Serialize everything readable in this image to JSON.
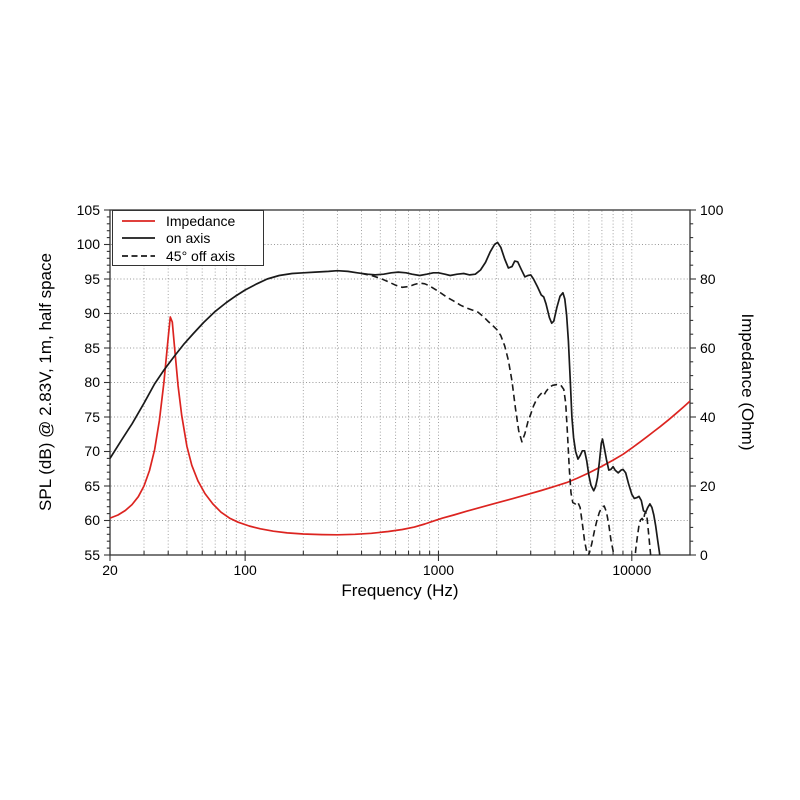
{
  "chart_data": {
    "type": "line",
    "title": "",
    "xlabel": "Frequency (Hz)",
    "ylabel_left": "SPL (dB) @ 2.83V, 1m, half space",
    "ylabel_right": "Impedance (Ohm)",
    "x_axis": {
      "scale": "log",
      "min": 20,
      "max": 20000,
      "major_ticks": [
        20,
        100,
        1000,
        10000
      ],
      "major_tick_labels": [
        "20",
        "100",
        "1000",
        "10000"
      ],
      "minor_ticks": [
        30,
        40,
        50,
        60,
        70,
        80,
        90,
        200,
        300,
        400,
        500,
        600,
        700,
        800,
        900,
        2000,
        3000,
        4000,
        5000,
        6000,
        7000,
        8000,
        9000
      ]
    },
    "y_left": {
      "min": 55,
      "max": 105,
      "major_ticks": [
        55,
        60,
        65,
        70,
        75,
        80,
        85,
        90,
        95,
        100,
        105
      ],
      "minor_step": 1
    },
    "y_right": {
      "min": 0,
      "max": 100,
      "major_ticks": [
        0,
        20,
        40,
        60,
        80,
        100
      ],
      "minor_step": 4
    },
    "grid": {
      "on": true,
      "color": "#999999",
      "style": "dotted"
    },
    "legend_position": "top-left",
    "series": [
      {
        "name": "Impedance",
        "axis": "right",
        "color": "#dc2420",
        "style": "solid",
        "points": [
          [
            20,
            10.7
          ],
          [
            22,
            11.6
          ],
          [
            24,
            12.9
          ],
          [
            26,
            14.6
          ],
          [
            28,
            16.9
          ],
          [
            30,
            20
          ],
          [
            32,
            24.5
          ],
          [
            34,
            30.5
          ],
          [
            36,
            39
          ],
          [
            38,
            50
          ],
          [
            40,
            63
          ],
          [
            41,
            69
          ],
          [
            42,
            67.5
          ],
          [
            43,
            61
          ],
          [
            45,
            49
          ],
          [
            47,
            40.5
          ],
          [
            50,
            31.5
          ],
          [
            53,
            26
          ],
          [
            57,
            21.5
          ],
          [
            62,
            17.8
          ],
          [
            68,
            14.8
          ],
          [
            75,
            12.4
          ],
          [
            83,
            10.7
          ],
          [
            92,
            9.5
          ],
          [
            105,
            8.4
          ],
          [
            120,
            7.6
          ],
          [
            140,
            6.9
          ],
          [
            165,
            6.4
          ],
          [
            200,
            6.1
          ],
          [
            250,
            5.9
          ],
          [
            300,
            5.85
          ],
          [
            370,
            6
          ],
          [
            450,
            6.3
          ],
          [
            550,
            6.8
          ],
          [
            650,
            7.4
          ],
          [
            750,
            8.1
          ],
          [
            850,
            9
          ],
          [
            950,
            9.9
          ],
          [
            1050,
            10.7
          ],
          [
            1200,
            11.6
          ],
          [
            1400,
            12.7
          ],
          [
            1700,
            14
          ],
          [
            2000,
            15.1
          ],
          [
            2400,
            16.3
          ],
          [
            2900,
            17.6
          ],
          [
            3400,
            18.7
          ],
          [
            4000,
            19.9
          ],
          [
            4600,
            21
          ],
          [
            5200,
            22.2
          ],
          [
            6000,
            23.8
          ],
          [
            7000,
            25.7
          ],
          [
            8000,
            27.5
          ],
          [
            9000,
            29.2
          ],
          [
            10000,
            31
          ],
          [
            11000,
            32.7
          ],
          [
            12000,
            34.3
          ],
          [
            13000,
            35.8
          ],
          [
            14000,
            37.2
          ],
          [
            15500,
            39.2
          ],
          [
            17000,
            41.1
          ],
          [
            18500,
            42.9
          ],
          [
            20000,
            44.6
          ]
        ]
      },
      {
        "name": "on axis",
        "axis": "left",
        "color": "#1a1a1a",
        "style": "solid",
        "points": [
          [
            20,
            69
          ],
          [
            23,
            71.7
          ],
          [
            26,
            74
          ],
          [
            30,
            77
          ],
          [
            34,
            79.8
          ],
          [
            38,
            81.8
          ],
          [
            43,
            83.8
          ],
          [
            48,
            85.5
          ],
          [
            54,
            87.1
          ],
          [
            61,
            88.7
          ],
          [
            70,
            90.3
          ],
          [
            80,
            91.6
          ],
          [
            90,
            92.6
          ],
          [
            100,
            93.4
          ],
          [
            115,
            94.3
          ],
          [
            130,
            95
          ],
          [
            150,
            95.5
          ],
          [
            175,
            95.8
          ],
          [
            200,
            95.9
          ],
          [
            230,
            96
          ],
          [
            270,
            96.1
          ],
          [
            300,
            96.2
          ],
          [
            340,
            96.1
          ],
          [
            380,
            95.9
          ],
          [
            430,
            95.7
          ],
          [
            470,
            95.6
          ],
          [
            520,
            95.7
          ],
          [
            570,
            95.9
          ],
          [
            620,
            96
          ],
          [
            680,
            95.9
          ],
          [
            730,
            95.7
          ],
          [
            800,
            95.5
          ],
          [
            870,
            95.7
          ],
          [
            940,
            95.9
          ],
          [
            1000,
            95.9
          ],
          [
            1080,
            95.7
          ],
          [
            1150,
            95.5
          ],
          [
            1250,
            95.7
          ],
          [
            1350,
            95.8
          ],
          [
            1450,
            95.6
          ],
          [
            1550,
            95.7
          ],
          [
            1650,
            96.3
          ],
          [
            1750,
            97.4
          ],
          [
            1850,
            98.9
          ],
          [
            1950,
            100
          ],
          [
            2020,
            100.3
          ],
          [
            2100,
            99.6
          ],
          [
            2200,
            97.9
          ],
          [
            2300,
            96.6
          ],
          [
            2400,
            96.8
          ],
          [
            2480,
            97.6
          ],
          [
            2570,
            97.5
          ],
          [
            2680,
            96.4
          ],
          [
            2800,
            95.3
          ],
          [
            2900,
            95.5
          ],
          [
            3000,
            95.6
          ],
          [
            3100,
            95
          ],
          [
            3250,
            93.9
          ],
          [
            3400,
            92.7
          ],
          [
            3500,
            92.4
          ],
          [
            3600,
            91.4
          ],
          [
            3750,
            89.4
          ],
          [
            3850,
            88.6
          ],
          [
            3950,
            88.9
          ],
          [
            4100,
            90.9
          ],
          [
            4250,
            92.5
          ],
          [
            4400,
            93
          ],
          [
            4500,
            92.1
          ],
          [
            4600,
            89.8
          ],
          [
            4700,
            86
          ],
          [
            4800,
            80.5
          ],
          [
            4900,
            75
          ],
          [
            5000,
            72
          ],
          [
            5120,
            70
          ],
          [
            5270,
            68.9
          ],
          [
            5400,
            69.4
          ],
          [
            5550,
            70.1
          ],
          [
            5700,
            70.1
          ],
          [
            5850,
            68.6
          ],
          [
            6000,
            66.5
          ],
          [
            6150,
            65.1
          ],
          [
            6350,
            64.3
          ],
          [
            6500,
            64.9
          ],
          [
            6650,
            66.2
          ],
          [
            6800,
            68.5
          ],
          [
            6950,
            71.2
          ],
          [
            7050,
            71.8
          ],
          [
            7200,
            70.6
          ],
          [
            7400,
            68.8
          ],
          [
            7600,
            67.3
          ],
          [
            7800,
            67.4
          ],
          [
            8000,
            67.8
          ],
          [
            8200,
            67.3
          ],
          [
            8500,
            66.9
          ],
          [
            8800,
            67.3
          ],
          [
            9000,
            67.4
          ],
          [
            9300,
            66.9
          ],
          [
            9600,
            65.4
          ],
          [
            10000,
            63.8
          ],
          [
            10300,
            63.2
          ],
          [
            10600,
            63.3
          ],
          [
            10900,
            63.5
          ],
          [
            11200,
            62.9
          ],
          [
            11500,
            61.4
          ],
          [
            11800,
            61.2
          ],
          [
            12100,
            61.9
          ],
          [
            12400,
            62.4
          ],
          [
            12700,
            61.9
          ],
          [
            13000,
            60.8
          ],
          [
            13300,
            59.2
          ],
          [
            13600,
            57.2
          ],
          [
            13900,
            55.3
          ],
          [
            14150,
            53.5
          ]
        ]
      },
      {
        "name": "45° off axis",
        "axis": "left",
        "color": "#1a1a1a",
        "style": "dashed",
        "points": [
          [
            400,
            95.8
          ],
          [
            450,
            95.5
          ],
          [
            500,
            95.1
          ],
          [
            550,
            94.6
          ],
          [
            600,
            94.1
          ],
          [
            650,
            93.8
          ],
          [
            700,
            93.9
          ],
          [
            750,
            94.2
          ],
          [
            800,
            94.4
          ],
          [
            850,
            94.3
          ],
          [
            900,
            94
          ],
          [
            1000,
            93.2
          ],
          [
            1100,
            92.4
          ],
          [
            1200,
            91.8
          ],
          [
            1300,
            91.2
          ],
          [
            1400,
            90.8
          ],
          [
            1500,
            90.5
          ],
          [
            1600,
            90.2
          ],
          [
            1700,
            89.6
          ],
          [
            1800,
            88.9
          ],
          [
            1900,
            88.3
          ],
          [
            2000,
            87.7
          ],
          [
            2100,
            86.8
          ],
          [
            2200,
            85.3
          ],
          [
            2300,
            83.2
          ],
          [
            2400,
            80.2
          ],
          [
            2500,
            76.3
          ],
          [
            2600,
            73
          ],
          [
            2700,
            71.4
          ],
          [
            2800,
            72.6
          ],
          [
            2900,
            74.3
          ],
          [
            3000,
            75.4
          ],
          [
            3100,
            76.6
          ],
          [
            3200,
            77.4
          ],
          [
            3300,
            78
          ],
          [
            3400,
            78.4
          ],
          [
            3500,
            78.1
          ],
          [
            3600,
            78.7
          ],
          [
            3750,
            79.3
          ],
          [
            3900,
            79.6
          ],
          [
            4100,
            79.7
          ],
          [
            4300,
            79.6
          ],
          [
            4450,
            79
          ],
          [
            4550,
            77
          ],
          [
            4650,
            72.5
          ],
          [
            4750,
            67.5
          ],
          [
            4850,
            64
          ],
          [
            4950,
            62.6
          ],
          [
            5100,
            62.4
          ],
          [
            5250,
            62.7
          ],
          [
            5400,
            61.9
          ],
          [
            5550,
            59.5
          ],
          [
            5700,
            57
          ],
          [
            5850,
            55.4
          ],
          [
            5950,
            54.9
          ],
          [
            6050,
            55.4
          ],
          [
            6200,
            56.6
          ],
          [
            6400,
            58.4
          ],
          [
            6600,
            60
          ],
          [
            6800,
            61.2
          ],
          [
            7000,
            61.9
          ],
          [
            7200,
            62.1
          ],
          [
            7400,
            61.2
          ],
          [
            7600,
            59.4
          ],
          [
            7800,
            57.2
          ],
          [
            8000,
            55.6
          ],
          [
            8200,
            53.5
          ],
          [
            8600,
            51.5
          ],
          [
            10000,
            51.5
          ],
          [
            10300,
            53.5
          ],
          [
            10500,
            56
          ],
          [
            10700,
            57.8
          ],
          [
            10900,
            59.3
          ],
          [
            11100,
            60.1
          ],
          [
            11300,
            60.3
          ],
          [
            11500,
            60
          ],
          [
            11650,
            60.9
          ],
          [
            11800,
            61.2
          ],
          [
            11950,
            60.7
          ],
          [
            12100,
            59.3
          ],
          [
            12300,
            57.2
          ],
          [
            12500,
            55.2
          ],
          [
            12700,
            53
          ]
        ]
      }
    ]
  }
}
